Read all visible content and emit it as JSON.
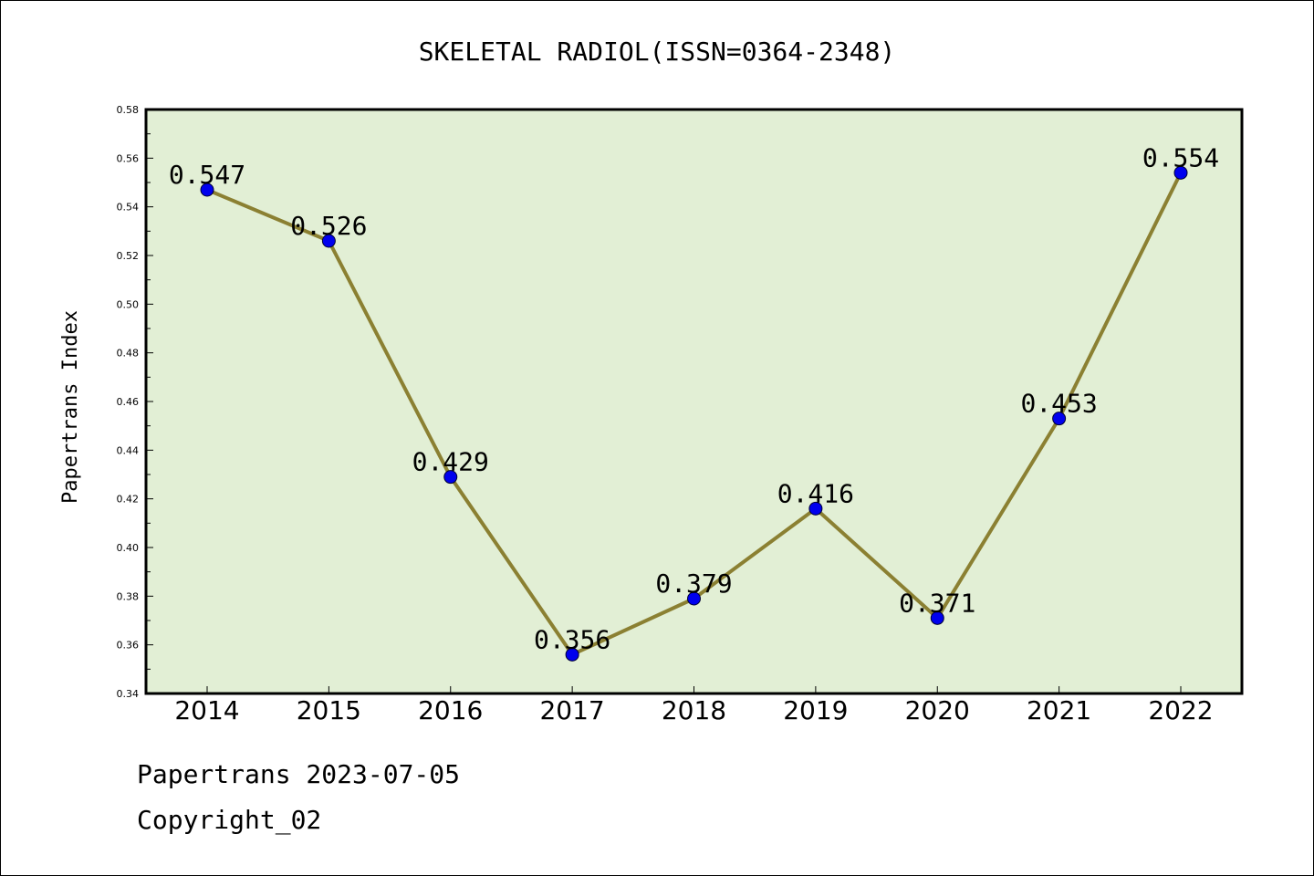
{
  "chart_data": {
    "type": "line",
    "title": "SKELETAL RADIOL(ISSN=0364-2348)",
    "xlabel": "",
    "ylabel": "Papertrans Index",
    "categories": [
      "2014",
      "2015",
      "2016",
      "2017",
      "2018",
      "2019",
      "2020",
      "2021",
      "2022"
    ],
    "series": [
      {
        "values": [
          0.547,
          0.526,
          0.429,
          0.356,
          0.379,
          0.416,
          0.371,
          0.453,
          0.554
        ],
        "labels": [
          "0.547",
          "0.526",
          "0.429",
          "0.356",
          "0.379",
          "0.416",
          "0.371",
          "0.453",
          "0.554"
        ]
      }
    ],
    "ylim": [
      0.34,
      0.58
    ],
    "yticks": [
      "0.34",
      "0.36",
      "0.38",
      "0.40",
      "0.42",
      "0.44",
      "0.46",
      "0.48",
      "0.50",
      "0.52",
      "0.54",
      "0.56",
      "0.58"
    ],
    "grid": false,
    "colors": {
      "plot_background": "#e2efd5",
      "line": "#8b8032",
      "marker": "#0000ee",
      "axes": "#000000"
    }
  },
  "footer": {
    "line1": "Papertrans 2023-07-05",
    "line2": "Copyright_02"
  }
}
